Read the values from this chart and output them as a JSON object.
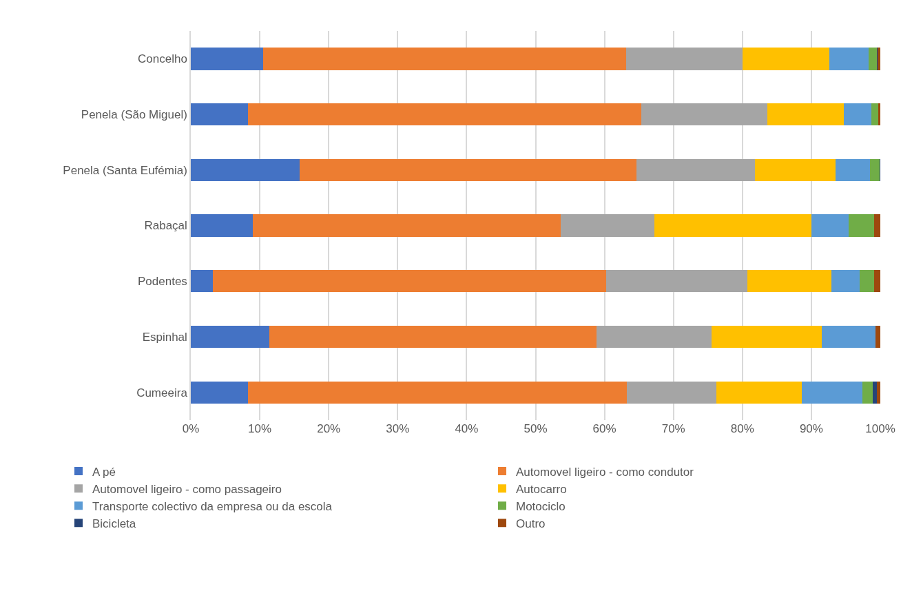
{
  "chart_data": {
    "type": "bar",
    "orientation": "horizontal",
    "stacked": true,
    "grid": "x",
    "legend": "bottom",
    "categories": [
      "Concelho",
      "Penela (São Miguel)",
      "Penela (Santa Eufémia)",
      "Rabaçal",
      "Podentes",
      "Espinhal",
      "Cumeeira"
    ],
    "xlim": [
      0,
      100
    ],
    "xticks": [
      {
        "value": 0,
        "label": "0%"
      },
      {
        "value": 10,
        "label": "10%"
      },
      {
        "value": 20,
        "label": "20%"
      },
      {
        "value": 30,
        "label": "30%"
      },
      {
        "value": 40,
        "label": "40%"
      },
      {
        "value": 50,
        "label": "50%"
      },
      {
        "value": 60,
        "label": "60%"
      },
      {
        "value": 70,
        "label": "70%"
      },
      {
        "value": 80,
        "label": "80%"
      },
      {
        "value": 90,
        "label": "90%"
      },
      {
        "value": 100,
        "label": "100%"
      }
    ],
    "series": [
      {
        "name": "A pé",
        "color": "#4472c4",
        "values": [
          10.5,
          8.3,
          15.8,
          9.0,
          3.2,
          11.4,
          8.3
        ]
      },
      {
        "name": "Automovel ligeiro - como condutor",
        "color": "#ed7d31",
        "values": [
          52.6,
          57.0,
          48.8,
          44.6,
          57.0,
          47.4,
          54.9
        ]
      },
      {
        "name": "Automovel ligeiro - como passageiro",
        "color": "#a5a5a5",
        "values": [
          16.9,
          18.3,
          17.2,
          13.6,
          20.5,
          16.7,
          13.0
        ]
      },
      {
        "name": "Autocarro",
        "color": "#ffc000",
        "values": [
          12.6,
          11.1,
          11.7,
          22.8,
          12.2,
          16.0,
          12.4
        ]
      },
      {
        "name": "Transporte colectivo da empresa ou da escola",
        "color": "#5b9bd5",
        "values": [
          5.7,
          4.0,
          5.0,
          5.4,
          4.1,
          7.8,
          8.8
        ]
      },
      {
        "name": "Motociclo",
        "color": "#70ad47",
        "values": [
          1.2,
          1.0,
          1.4,
          3.7,
          2.1,
          0,
          1.5
        ]
      },
      {
        "name": "Bicicleta",
        "color": "#264478",
        "values": [
          0.1,
          0,
          0.1,
          0,
          0,
          0,
          0.6
        ]
      },
      {
        "name": "Outro",
        "color": "#9e480e",
        "values": [
          0.4,
          0.3,
          0,
          0.9,
          0.9,
          0.7,
          0.5
        ]
      }
    ]
  }
}
